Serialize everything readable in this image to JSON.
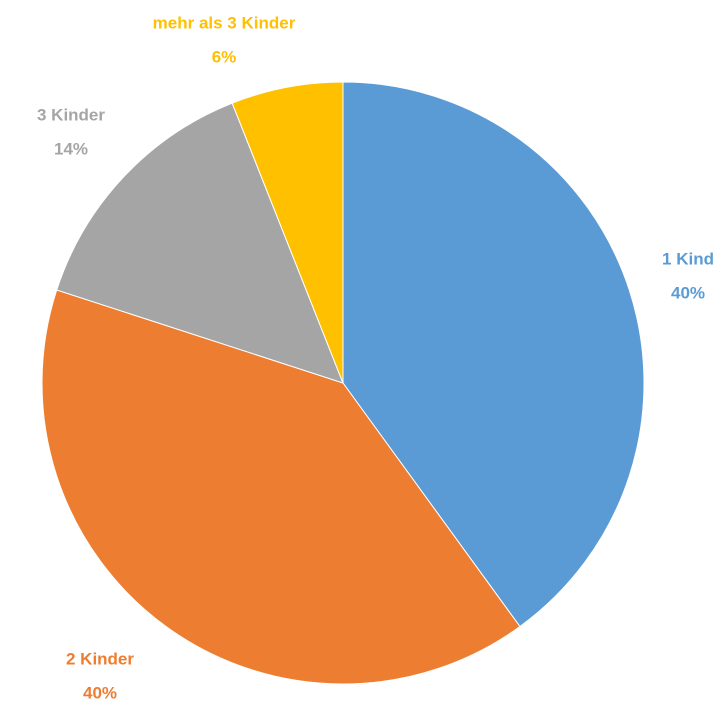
{
  "chart_data": {
    "type": "pie",
    "categories": [
      "1 Kind",
      "2 Kinder",
      "3 Kinder",
      "mehr als 3 Kinder"
    ],
    "values": [
      40,
      40,
      14,
      6
    ],
    "value_labels": [
      "40%",
      "40%",
      "14%",
      "6%"
    ],
    "colors": [
      "#5b9bd5",
      "#ed7d31",
      "#a5a5a5",
      "#ffc000"
    ]
  }
}
